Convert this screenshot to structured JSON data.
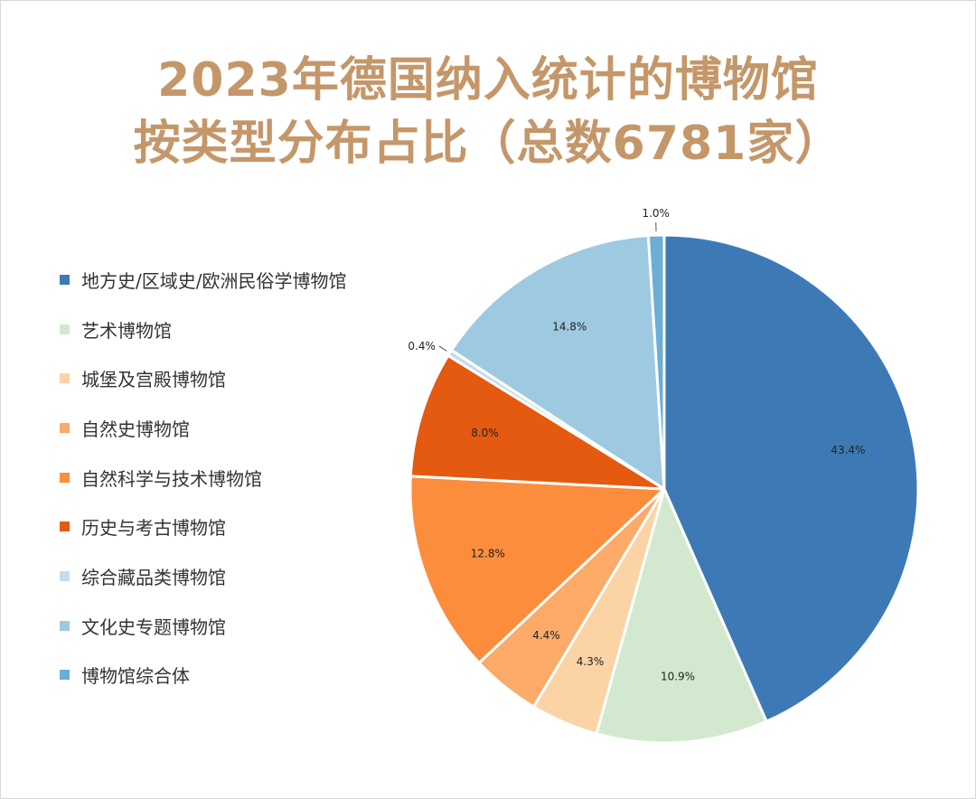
{
  "title_line1": "2023年德国纳入统计的博物馆",
  "title_line2": "按类型分布占比（总数6781家）",
  "chart_data": {
    "type": "pie",
    "title": "2023年德国纳入统计的博物馆按类型分布占比（总数6781家）",
    "legend_position": "left",
    "series": [
      {
        "name": "",
        "slices": [
          {
            "label": "地方史/区域史/欧洲民俗学博物馆",
            "value": 43.4,
            "display": "43.4%",
            "color": "#3d7ab5"
          },
          {
            "label": "艺术博物馆",
            "value": 10.9,
            "display": "10.9%",
            "color": "#d3e9cf"
          },
          {
            "label": "城堡及宫殿博物馆",
            "value": 4.3,
            "display": "4.3%",
            "color": "#fcd3a4"
          },
          {
            "label": "自然史博物馆",
            "value": 4.4,
            "display": "4.4%",
            "color": "#fbaa68"
          },
          {
            "label": "自然科学与技术博物馆",
            "value": 12.8,
            "display": "12.8%",
            "color": "#fb8d3d"
          },
          {
            "label": "历史与考古博物馆",
            "value": 8.0,
            "display": "8.0%",
            "color": "#e35a10"
          },
          {
            "label": "综合藏品类博物馆",
            "value": 0.4,
            "display": "0.4%",
            "color": "#c6dbef"
          },
          {
            "label": "文化史专题博物馆",
            "value": 14.8,
            "display": "14.8%",
            "color": "#9ecae1"
          },
          {
            "label": "博物馆综合体",
            "value": 1.0,
            "display": "1.0%",
            "color": "#6baed6"
          }
        ]
      }
    ]
  }
}
